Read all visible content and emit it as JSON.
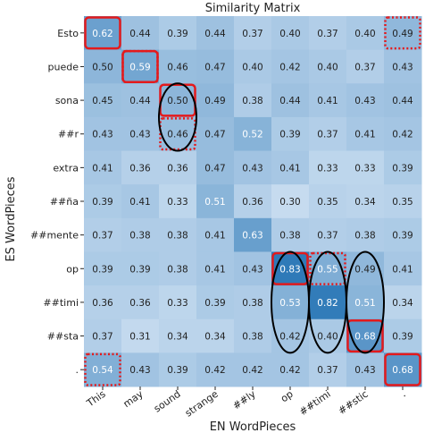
{
  "chart_data": {
    "type": "heatmap",
    "title": "Similarity Matrix",
    "xlabel": "EN WordPieces",
    "ylabel": "ES WordPieces",
    "x_categories": [
      "This",
      "may",
      "sound",
      "strange",
      "##ly",
      "op",
      "##timi",
      "##stic",
      "."
    ],
    "y_categories": [
      "Esto",
      "puede",
      "sona",
      "##r",
      "extra",
      "##ña",
      "##mente",
      "op",
      "##timi",
      "##sta",
      "."
    ],
    "values": [
      [
        0.62,
        0.44,
        0.39,
        0.44,
        0.37,
        0.4,
        0.37,
        0.4,
        0.49
      ],
      [
        0.5,
        0.59,
        0.46,
        0.47,
        0.4,
        0.42,
        0.4,
        0.37,
        0.43
      ],
      [
        0.45,
        0.44,
        0.5,
        0.49,
        0.38,
        0.44,
        0.41,
        0.43,
        0.44
      ],
      [
        0.43,
        0.43,
        0.46,
        0.47,
        0.52,
        0.39,
        0.37,
        0.41,
        0.42
      ],
      [
        0.41,
        0.36,
        0.36,
        0.47,
        0.43,
        0.41,
        0.33,
        0.33,
        0.39
      ],
      [
        0.39,
        0.41,
        0.33,
        0.51,
        0.36,
        0.3,
        0.35,
        0.34,
        0.35
      ],
      [
        0.37,
        0.38,
        0.38,
        0.41,
        0.63,
        0.38,
        0.37,
        0.38,
        0.39
      ],
      [
        0.39,
        0.39,
        0.38,
        0.41,
        0.43,
        0.83,
        0.55,
        0.49,
        0.41
      ],
      [
        0.36,
        0.36,
        0.33,
        0.39,
        0.38,
        0.53,
        0.82,
        0.51,
        0.34
      ],
      [
        0.37,
        0.31,
        0.34,
        0.34,
        0.38,
        0.42,
        0.4,
        0.68,
        0.39
      ],
      [
        0.54,
        0.43,
        0.39,
        0.42,
        0.42,
        0.42,
        0.37,
        0.43,
        0.68
      ]
    ],
    "value_range": [
      0.3,
      0.83
    ],
    "colormap": [
      "#c6dbef",
      "#2f7ab8"
    ],
    "annotations": {
      "solid_boxes": [
        [
          0,
          0
        ],
        [
          1,
          1
        ],
        [
          2,
          2
        ],
        [
          7,
          5
        ],
        [
          9,
          7
        ],
        [
          10,
          8
        ]
      ],
      "dotted_boxes": [
        [
          0,
          8
        ],
        [
          1,
          1
        ],
        [
          3,
          2
        ],
        [
          7,
          6
        ],
        [
          10,
          0
        ]
      ],
      "ellipses": [
        {
          "col": 2,
          "rows": [
            2,
            3
          ]
        },
        {
          "col": 5,
          "rows": [
            7,
            9
          ]
        },
        {
          "col": 6,
          "rows": [
            7,
            9
          ]
        },
        {
          "col": 7,
          "rows": [
            7,
            9
          ]
        }
      ],
      "colors": {
        "box": "#e41a1c",
        "ellipse": "#000000"
      }
    }
  }
}
